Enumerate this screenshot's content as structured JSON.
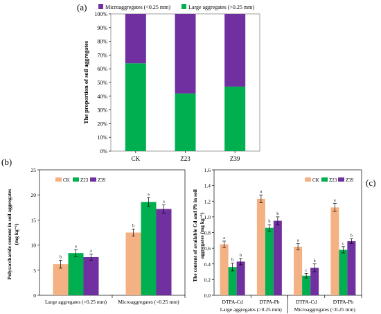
{
  "colors": {
    "micro": "#7030a0",
    "large": "#00b050",
    "ck": "#f4b183",
    "z23": "#00b050",
    "z39": "#7030a0"
  },
  "chart_data": [
    {
      "panel_label": "(a)",
      "type": "bar",
      "stacked": true,
      "categories": [
        "CK",
        "Z23",
        "Z39"
      ],
      "series": [
        {
          "name": "Large aggregates (>0.25 mm)",
          "values": [
            64,
            42,
            47
          ]
        },
        {
          "name": "Microaggregates (<0.25 mm)",
          "values": [
            36,
            58,
            53
          ]
        }
      ],
      "ylabel": "The proportion of soil aggregates",
      "ylim": [
        0,
        100
      ],
      "yticks": [
        "0%",
        "10%",
        "20%",
        "30%",
        "40%",
        "50%",
        "60%",
        "70%",
        "80%",
        "90%",
        "100%"
      ],
      "legend_position": "top"
    },
    {
      "panel_label": "(b)",
      "type": "bar",
      "categories": [
        "Large aggregates (>0.25 mm)",
        "Microaggregates (<0.25 mm)"
      ],
      "series": [
        {
          "name": "CK",
          "values": [
            6.2,
            12.5
          ],
          "errors": [
            0.8,
            0.7
          ],
          "letters": [
            "b",
            "b"
          ]
        },
        {
          "name": "Z23",
          "values": [
            8.4,
            18.6
          ],
          "errors": [
            0.7,
            0.9
          ],
          "letters": [
            "a",
            "a"
          ]
        },
        {
          "name": "Z39",
          "values": [
            7.6,
            17.2
          ],
          "errors": [
            0.6,
            0.8
          ],
          "letters": [
            "a",
            "a"
          ]
        }
      ],
      "ylabel_line1": "Polysaccharide content in soil aggregates",
      "ylabel_line2": "(mg kg⁻¹)",
      "ylim": [
        0,
        25
      ],
      "yticks": [
        "0",
        "5",
        "10",
        "15",
        "20",
        "25"
      ],
      "legend_position": "top-left"
    },
    {
      "panel_label": "(c)",
      "type": "bar",
      "categories": [
        "DTPA-Cd",
        "DTPA-Pb",
        "DTPA-Cd",
        "DTPA-Pb"
      ],
      "groups": [
        "Large aggregates (>0.25 mm)",
        "Microaggregates (<0.25 mm)"
      ],
      "series": [
        {
          "name": "CK",
          "values": [
            0.65,
            1.23,
            0.62,
            1.12
          ],
          "errors": [
            0.04,
            0.05,
            0.04,
            0.05
          ],
          "letters": [
            "a",
            "a",
            "a",
            "a"
          ]
        },
        {
          "name": "Z23",
          "values": [
            0.36,
            0.86,
            0.25,
            0.58
          ],
          "errors": [
            0.05,
            0.04,
            0.03,
            0.04
          ],
          "letters": [
            "b",
            "b",
            "c",
            "c"
          ]
        },
        {
          "name": "Z39",
          "values": [
            0.43,
            0.95,
            0.35,
            0.69
          ],
          "errors": [
            0.04,
            0.05,
            0.05,
            0.03
          ],
          "letters": [
            "b",
            "b",
            "b",
            "b"
          ]
        }
      ],
      "ylabel_line1": "The content of available Cd and Pb in soil",
      "ylabel_line2": "aggregates  (mg kg⁻¹)",
      "ylim": [
        0,
        1.6
      ],
      "yticks": [
        "0.0",
        "0.2",
        "0.4",
        "0.6",
        "0.8",
        "1.0",
        "1.2",
        "1.4",
        "1.6"
      ],
      "legend_position": "top-right"
    }
  ]
}
